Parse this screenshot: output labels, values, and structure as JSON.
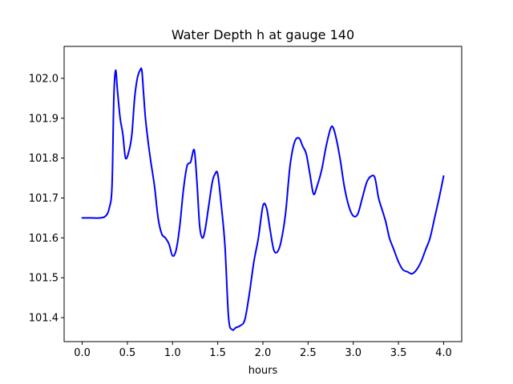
{
  "chart_data": {
    "type": "line",
    "title": "Water Depth h at gauge 140",
    "xlabel": "hours",
    "ylabel": "",
    "xlim": [
      -0.2,
      4.2
    ],
    "ylim": [
      101.34,
      102.08
    ],
    "x_ticks": [
      "0.0",
      "0.5",
      "1.0",
      "1.5",
      "2.0",
      "2.5",
      "3.0",
      "3.5",
      "4.0"
    ],
    "y_ticks": [
      "101.4",
      "101.5",
      "101.6",
      "101.7",
      "101.8",
      "101.9",
      "102.0"
    ],
    "grid": false,
    "line_color": "#0000ff",
    "series": [
      {
        "x": [
          0.0,
          0.1,
          0.2,
          0.26,
          0.3,
          0.33,
          0.35,
          0.37,
          0.39,
          0.42,
          0.45,
          0.48,
          0.52,
          0.55,
          0.58,
          0.61,
          0.64,
          0.66,
          0.68,
          0.7,
          0.73,
          0.76,
          0.8,
          0.84,
          0.88,
          0.92,
          0.96,
          1.0,
          1.04,
          1.08,
          1.12,
          1.16,
          1.2,
          1.24,
          1.27,
          1.3,
          1.33,
          1.36,
          1.4,
          1.44,
          1.47,
          1.5,
          1.54,
          1.58,
          1.62,
          1.66,
          1.7,
          1.75,
          1.8,
          1.85,
          1.9,
          1.95,
          2.0,
          2.04,
          2.08,
          2.12,
          2.16,
          2.2,
          2.25,
          2.3,
          2.35,
          2.4,
          2.44,
          2.48,
          2.52,
          2.56,
          2.6,
          2.65,
          2.7,
          2.75,
          2.78,
          2.82,
          2.86,
          2.9,
          2.95,
          3.0,
          3.05,
          3.1,
          3.15,
          3.2,
          3.24,
          3.28,
          3.32,
          3.36,
          3.4,
          3.45,
          3.5,
          3.55,
          3.6,
          3.65,
          3.7,
          3.75,
          3.8,
          3.85,
          3.9,
          3.95,
          4.0
        ],
        "y": [
          101.65,
          101.65,
          101.65,
          101.655,
          101.675,
          101.73,
          101.95,
          102.02,
          101.97,
          101.9,
          101.86,
          101.8,
          101.82,
          101.86,
          101.95,
          102.0,
          102.02,
          102.02,
          101.96,
          101.9,
          101.84,
          101.79,
          101.73,
          101.65,
          101.61,
          101.6,
          101.585,
          101.555,
          101.57,
          101.63,
          101.72,
          101.78,
          101.79,
          101.82,
          101.74,
          101.63,
          101.6,
          101.62,
          101.68,
          101.74,
          101.76,
          101.76,
          101.68,
          101.58,
          101.4,
          101.37,
          101.375,
          101.38,
          101.395,
          101.46,
          101.54,
          101.6,
          101.68,
          101.675,
          101.62,
          101.57,
          101.565,
          101.59,
          101.66,
          101.78,
          101.84,
          101.85,
          101.83,
          101.81,
          101.76,
          101.71,
          101.73,
          101.77,
          101.83,
          101.875,
          101.875,
          101.84,
          101.79,
          101.73,
          101.68,
          101.655,
          101.66,
          101.7,
          101.74,
          101.755,
          101.75,
          101.7,
          101.67,
          101.64,
          101.6,
          101.57,
          101.54,
          101.52,
          101.515,
          101.51,
          101.52,
          101.54,
          101.57,
          101.6,
          101.65,
          101.7,
          101.755
        ]
      }
    ]
  }
}
